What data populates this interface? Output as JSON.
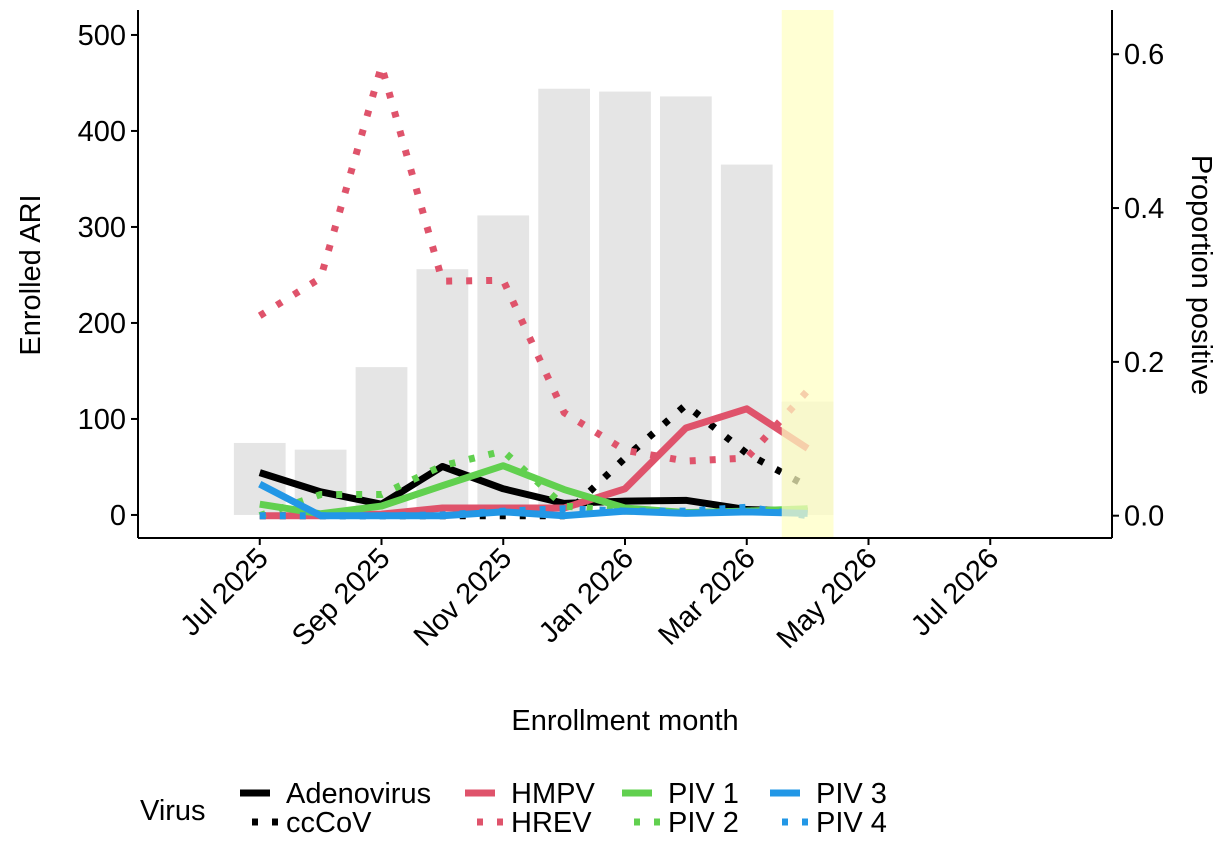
{
  "chart_data": {
    "type": "bar-line",
    "x_label": "Enrollment month",
    "y_label": "Enrolled ARI",
    "y2_label": "Proportion positive",
    "legend_title": "Virus",
    "x": [
      "2025-07",
      "2025-08",
      "2025-09",
      "2025-10",
      "2025-11",
      "2025-12",
      "2026-01",
      "2026-02",
      "2026-03",
      "2026-04"
    ],
    "bar_values": [
      75,
      68,
      154,
      256,
      312,
      444,
      441,
      436,
      365,
      118
    ],
    "bar_color": "#e5e5e5",
    "highlight": "2026-04",
    "highlight_color": "#ffffc2",
    "xlim": [
      "2025-05",
      "2026-09"
    ],
    "xticks": [
      {
        "value": "2025-07",
        "label": "Jul 2025"
      },
      {
        "value": "2025-09",
        "label": "Sep 2025"
      },
      {
        "value": "2025-11",
        "label": "Nov 2025"
      },
      {
        "value": "2026-01",
        "label": "Jan 2026"
      },
      {
        "value": "2026-03",
        "label": "Mar 2026"
      },
      {
        "value": "2026-05",
        "label": "May 2026"
      },
      {
        "value": "2026-07",
        "label": "Jul 2026"
      }
    ],
    "ylim": [
      -24,
      526
    ],
    "yticks": [
      0,
      100,
      200,
      300,
      400,
      500
    ],
    "y2lim": [
      -0.029,
      0.6575
    ],
    "y2ticks": [
      {
        "value": 0,
        "label": "0.0"
      },
      {
        "value": 0.2,
        "label": "0.2"
      },
      {
        "value": 0.4,
        "label": "0.4"
      },
      {
        "value": 0.6,
        "label": "0.6"
      }
    ],
    "series": [
      {
        "name": "Adenovirus",
        "color": "#000000",
        "linetype": "solid",
        "axis": "y2",
        "values": [
          0.056,
          0.031,
          0.015,
          0.064,
          0.035,
          0.016,
          0.019,
          0.02,
          0.008,
          0.006
        ]
      },
      {
        "name": "ccCoV",
        "color": "#000000",
        "linetype": "dotted",
        "axis": "y2",
        "values": [
          0,
          0,
          0,
          0,
          0,
          0,
          0.075,
          0.144,
          0.081,
          0.038
        ]
      },
      {
        "name": "HMPV",
        "color": "#df536b",
        "linetype": "solid",
        "axis": "y2",
        "values": [
          0,
          0,
          0.002,
          0.01,
          0.01,
          0.01,
          0.035,
          0.114,
          0.139,
          0.0875
        ]
      },
      {
        "name": "HREV",
        "color": "#df536b",
        "linetype": "dotted",
        "axis": "y2",
        "values": [
          0.26,
          0.309,
          0.585,
          0.305,
          0.306,
          0.134,
          0.085,
          0.071,
          0.075,
          0.1625
        ]
      },
      {
        "name": "PIV 1",
        "color": "#61d04f",
        "linetype": "solid",
        "axis": "y2",
        "values": [
          0.015,
          0.0025,
          0.0125,
          0.039,
          0.065,
          0.034,
          0.01,
          0.004,
          0.006,
          0.009
        ]
      },
      {
        "name": "PIV 2",
        "color": "#61d04f",
        "linetype": "dotted",
        "axis": "y2",
        "values": [
          0,
          0.0275,
          0.0275,
          0.065,
          0.084,
          0.0125,
          0.006,
          0.004,
          0.006,
          0.009
        ]
      },
      {
        "name": "PIV 3",
        "color": "#2297e6",
        "linetype": "solid",
        "axis": "y2",
        "values": [
          0.041,
          0,
          0,
          0,
          0.005,
          0,
          0.006,
          0.003,
          0.005,
          0.003
        ]
      },
      {
        "name": "PIV 4",
        "color": "#2297e6",
        "linetype": "dotted",
        "axis": "y2",
        "values": [
          0,
          0,
          0,
          0.001,
          0.006,
          0.009,
          0.006,
          0.006,
          0.011,
          0
        ]
      }
    ]
  }
}
